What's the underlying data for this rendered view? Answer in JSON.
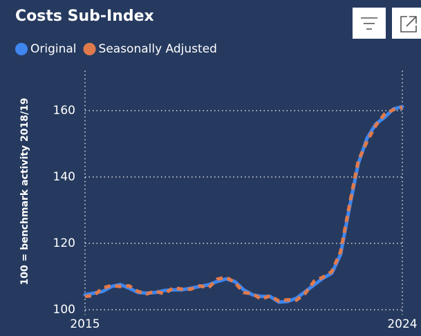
{
  "chart_data": {
    "type": "line",
    "title": "Costs Sub-Index",
    "y_label": "100 = benchmark activity 2018/19",
    "x": [
      2015,
      2015.25,
      2015.5,
      2015.75,
      2016,
      2016.25,
      2016.5,
      2016.75,
      2017,
      2017.25,
      2017.5,
      2017.75,
      2018,
      2018.25,
      2018.5,
      2018.75,
      2019,
      2019.25,
      2019.5,
      2019.75,
      2020,
      2020.25,
      2020.5,
      2020.75,
      2021,
      2021.25,
      2021.5,
      2021.75,
      2022,
      2022.25,
      2022.5,
      2022.75,
      2023,
      2023.25,
      2023.5,
      2023.75,
      2024
    ],
    "series": [
      {
        "name": "Original",
        "color": "#3f86ee",
        "style": "solid",
        "values": [
          104.5,
          105,
          105.5,
          107,
          107.6,
          106.5,
          105.2,
          105,
          105.2,
          105.8,
          106,
          106,
          106.5,
          107,
          107.5,
          108.5,
          109.3,
          108.5,
          106,
          104.5,
          104,
          104,
          102.3,
          102.5,
          103.5,
          105.5,
          107.5,
          109.5,
          111,
          116.7,
          130.8,
          144,
          151.7,
          156,
          158,
          160.5,
          161.2
        ]
      },
      {
        "name": "Seasonally Adjusted",
        "color": "#e07a4c",
        "style": "dashed",
        "values": [
          104,
          104.3,
          106.5,
          107.3,
          107,
          107.2,
          105.5,
          104.8,
          105.6,
          104.8,
          106.6,
          106.2,
          106.2,
          107.2,
          106.6,
          109.2,
          109.8,
          108.2,
          105.2,
          104.8,
          103.2,
          104.2,
          102.6,
          103,
          102.9,
          105,
          108.6,
          109.8,
          111.5,
          117.5,
          131.5,
          144.8,
          150.8,
          155.6,
          159,
          160.3,
          161
        ]
      }
    ],
    "xlim": [
      2015,
      2024
    ],
    "xticks": [
      2015,
      2024
    ],
    "ylim": [
      98.5,
      172
    ],
    "yticks": [
      100,
      120,
      140,
      160
    ],
    "grid": true
  }
}
